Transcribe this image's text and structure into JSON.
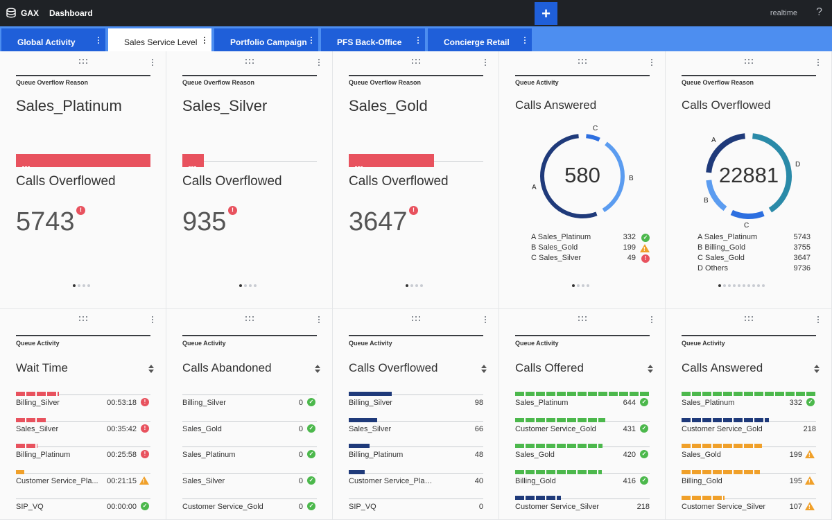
{
  "app": {
    "name": "GAX",
    "nav_dashboard": "Dashboard",
    "realtime": "realtime",
    "help": "?"
  },
  "tabs": [
    {
      "label": "Global Activity",
      "active": false
    },
    {
      "label": "Sales Service Level",
      "active": true
    },
    {
      "label": "Portfolio Campaign",
      "active": false
    },
    {
      "label": "PFS Back-Office",
      "active": false
    },
    {
      "label": "Concierge Retail",
      "active": false
    }
  ],
  "add_tab": "+",
  "colors": {
    "red": "#e8525e",
    "navy": "#1f3a7a",
    "green": "#4cb84c",
    "orange": "#f0a02a",
    "blue": "#1f5fd9",
    "teal": "#2a8aa8"
  },
  "top_cards": [
    {
      "subtitle": "Queue Overflow Reason",
      "title": "Sales_Platinum",
      "bar_fraction": 1.0,
      "metric_label": "Calls Overflowed",
      "metric_value": "5743",
      "alert": "!",
      "pages": 4
    },
    {
      "subtitle": "Queue Overflow Reason",
      "title": "Sales_Silver",
      "bar_fraction": 0.16,
      "metric_label": "Calls Overflowed",
      "metric_value": "935",
      "alert": "!",
      "pages": 4
    },
    {
      "subtitle": "Queue Overflow Reason",
      "title": "Sales_Gold",
      "bar_fraction": 0.635,
      "metric_label": "Calls Overflowed",
      "metric_value": "3647",
      "alert": "!",
      "pages": 4
    }
  ],
  "donut_answered": {
    "subtitle": "Queue Activity",
    "title": "Calls Answered",
    "total": "580",
    "segments": [
      {
        "label": "A",
        "name": "Sales_Platinum",
        "value": 332,
        "status": "ok",
        "color": "#1f3a7a"
      },
      {
        "label": "B",
        "name": "Sales_Gold",
        "value": 199,
        "status": "warn",
        "color": "#5b9cf0"
      },
      {
        "label": "C",
        "name": "Sales_Silver",
        "value": 49,
        "status": "err",
        "color": "#2d6fe0"
      }
    ],
    "legend": [
      "A Sales_Platinum",
      "B Sales_Gold",
      "C Sales_Silver"
    ],
    "pages": 4
  },
  "donut_overflowed": {
    "subtitle": "Queue Overflow Reason",
    "title": "Calls Overflowed",
    "total": "22881",
    "segments": [
      {
        "label": "A",
        "name": "Sales_Platinum",
        "value": 5743,
        "color": "#1f3a7a"
      },
      {
        "label": "B",
        "name": "Billing_Gold",
        "value": 3755,
        "color": "#5b9cf0"
      },
      {
        "label": "C",
        "name": "Sales_Gold",
        "value": 3647,
        "color": "#2d6fe0"
      },
      {
        "label": "D",
        "name": "Others",
        "value": 9736,
        "color": "#2a8aa8"
      }
    ],
    "legend": [
      "A Sales_Platinum",
      "B Billing_Gold",
      "C Sales_Gold",
      "D Others"
    ],
    "pages": 10
  },
  "list_cards": [
    {
      "subtitle": "Queue Activity",
      "title": "Wait Time",
      "color": "#e8525e",
      "segmented": true,
      "rows": [
        {
          "name": "Billing_Silver",
          "value": "00:53:18",
          "fraction": 0.32,
          "status": "err"
        },
        {
          "name": "Sales_Silver",
          "value": "00:35:42",
          "fraction": 0.22,
          "status": "err"
        },
        {
          "name": "Billing_Platinum",
          "value": "00:25:58",
          "fraction": 0.16,
          "status": "err"
        },
        {
          "name": "Customer Service_Pla...",
          "value": "00:21:15",
          "fraction": 0.06,
          "status": "warn",
          "color": "#f0a02a"
        },
        {
          "name": "SIP_VQ",
          "value": "00:00:00",
          "fraction": 0.0,
          "status": "ok"
        }
      ]
    },
    {
      "subtitle": "Queue Activity",
      "title": "Calls Abandoned",
      "color": "#1f3a7a",
      "segmented": false,
      "rows": [
        {
          "name": "Billing_Silver",
          "value": "0",
          "fraction": 0,
          "status": "ok"
        },
        {
          "name": "Sales_Gold",
          "value": "0",
          "fraction": 0,
          "status": "ok"
        },
        {
          "name": "Sales_Platinum",
          "value": "0",
          "fraction": 0,
          "status": "ok"
        },
        {
          "name": "Sales_Silver",
          "value": "0",
          "fraction": 0,
          "status": "ok"
        },
        {
          "name": "Customer Service_Gold",
          "value": "0",
          "fraction": 0,
          "status": "ok"
        }
      ]
    },
    {
      "subtitle": "Queue Activity",
      "title": "Calls Overflowed",
      "color": "#1f3a7a",
      "segmented": false,
      "rows": [
        {
          "name": "Billing_Silver",
          "value": "98",
          "fraction": 0.32,
          "status": ""
        },
        {
          "name": "Sales_Silver",
          "value": "66",
          "fraction": 0.21,
          "status": ""
        },
        {
          "name": "Billing_Platinum",
          "value": "48",
          "fraction": 0.155,
          "status": ""
        },
        {
          "name": "Customer Service_Platinum",
          "value": "40",
          "fraction": 0.12,
          "status": ""
        },
        {
          "name": "SIP_VQ",
          "value": "0",
          "fraction": 0,
          "status": ""
        }
      ]
    },
    {
      "subtitle": "Queue Activity",
      "title": "Calls Offered",
      "color": "#4cb84c",
      "segmented": true,
      "rows": [
        {
          "name": "Sales_Platinum",
          "value": "644",
          "fraction": 1.0,
          "status": "ok"
        },
        {
          "name": "Customer Service_Gold",
          "value": "431",
          "fraction": 0.67,
          "status": "ok"
        },
        {
          "name": "Sales_Gold",
          "value": "420",
          "fraction": 0.65,
          "status": "ok"
        },
        {
          "name": "Billing_Gold",
          "value": "416",
          "fraction": 0.645,
          "status": "ok"
        },
        {
          "name": "Customer Service_Silver",
          "value": "218",
          "fraction": 0.34,
          "status": "",
          "color": "#1f3a7a"
        }
      ]
    },
    {
      "subtitle": "Queue Activity",
      "title": "Calls Answered",
      "color": "#4cb84c",
      "segmented": true,
      "rows": [
        {
          "name": "Sales_Platinum",
          "value": "332",
          "fraction": 1.0,
          "status": "ok"
        },
        {
          "name": "Customer Service_Gold",
          "value": "218",
          "fraction": 0.65,
          "status": "",
          "color": "#1f3a7a"
        },
        {
          "name": "Sales_Gold",
          "value": "199",
          "fraction": 0.6,
          "status": "warn",
          "color": "#f0a02a"
        },
        {
          "name": "Billing_Gold",
          "value": "195",
          "fraction": 0.585,
          "status": "warn",
          "color": "#f0a02a"
        },
        {
          "name": "Customer Service_Silver",
          "value": "107",
          "fraction": 0.32,
          "status": "warn",
          "color": "#f0a02a"
        }
      ]
    }
  ]
}
